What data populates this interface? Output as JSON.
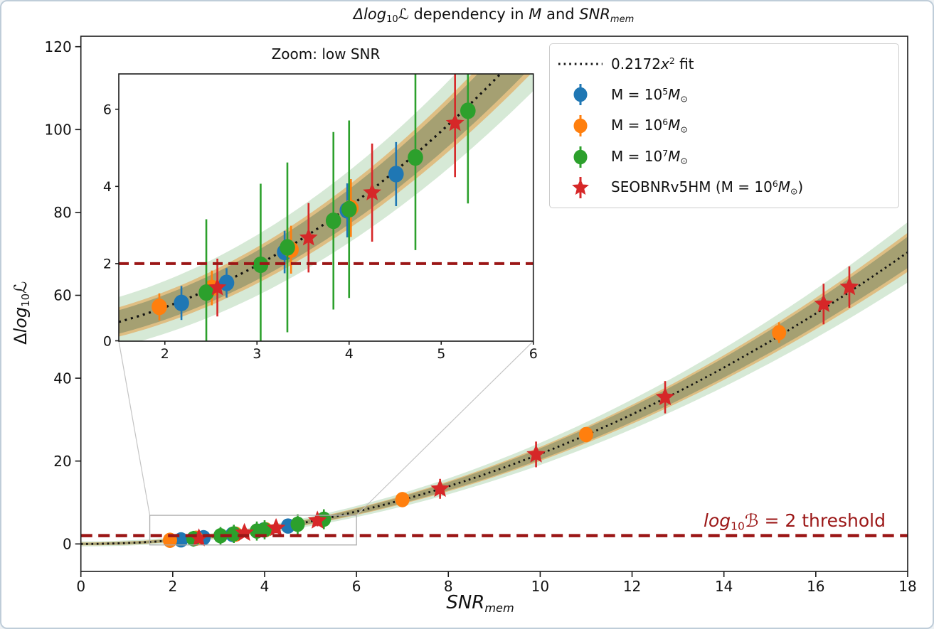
{
  "chart_data": {
    "type": "scatter",
    "title": "Δlog10ℒ dependency in M and SNRmem",
    "title_segments": [
      {
        "t": "Δ",
        "s": "it"
      },
      {
        "t": "log",
        "s": "it"
      },
      {
        "t": "10",
        "s": "sub"
      },
      {
        "t": "ℒ",
        "s": "scr"
      },
      {
        "t": " dependency in ",
        "s": ""
      },
      {
        "t": "M",
        "s": "it"
      },
      {
        "t": " and ",
        "s": ""
      },
      {
        "t": "SNR",
        "s": "it"
      },
      {
        "t": "mem",
        "s": "sub it"
      }
    ],
    "xlabel": "SNRmem",
    "xlabel_segments": [
      {
        "t": "SNR",
        "s": "it"
      },
      {
        "t": "mem",
        "s": "sub it"
      }
    ],
    "ylabel": "Δlog10ℒ",
    "ylabel_segments": [
      {
        "t": "Δ",
        "s": ""
      },
      {
        "t": "log",
        "s": "it"
      },
      {
        "t": "10",
        "s": "sub"
      },
      {
        "t": "ℒ",
        "s": "scr"
      }
    ],
    "main_axes": {
      "xlim": [
        0,
        18
      ],
      "ylim": [
        -6.6,
        122.5
      ],
      "xticks": [
        0,
        2,
        4,
        6,
        8,
        10,
        12,
        14,
        16,
        18
      ],
      "yticks": [
        0,
        20,
        40,
        60,
        80,
        100,
        120
      ],
      "grid": false
    },
    "inset": {
      "title": "Zoom: low SNR",
      "xlim": [
        1.5,
        6.0
      ],
      "ylim": [
        0,
        6.9
      ],
      "xticks": [
        2,
        3,
        4,
        5,
        6
      ],
      "yticks": [
        0,
        2,
        4,
        6
      ],
      "zoom_region": {
        "x0": 1.5,
        "x1": 6.0,
        "y0": -0.25,
        "y1": 6.9
      }
    },
    "fit": {
      "type": "quadratic",
      "coef": 0.2172,
      "label": "0.2172x^2 fit",
      "label_segments": [
        {
          "t": "0.2172",
          "s": ""
        },
        {
          "t": "x",
          "s": "it"
        },
        {
          "t": "2",
          "s": "sup"
        },
        {
          "t": " fit",
          "s": ""
        }
      ],
      "color": "#111111"
    },
    "threshold": {
      "y": 2,
      "label": "log10B = 2 threshold",
      "label_segments": [
        {
          "t": "log",
          "s": "it"
        },
        {
          "t": "10",
          "s": "sub"
        },
        {
          "t": "ℬ",
          "s": "scr"
        },
        {
          "t": " = 2 threshold",
          "s": ""
        }
      ],
      "color": "#9b1616"
    },
    "bands": {
      "outer_color": "#d6e9d6",
      "tan_color": "#debe83",
      "core_color": "#a5a072",
      "outer_halfwidth": {
        "a": 0.6,
        "b": 0.095
      },
      "inner_halfwidth": {
        "a": 0.35,
        "b": 0.062
      },
      "core_fraction": 0.8
    },
    "series": [
      {
        "name": "M = 10^5 Msun",
        "label_segments": [
          {
            "t": "M = 10",
            "s": ""
          },
          {
            "t": "5",
            "s": "sup"
          },
          {
            "t": "M",
            "s": "it"
          },
          {
            "t": "⊙",
            "s": "sub"
          }
        ],
        "color": "#1f77b4",
        "marker": "circle",
        "points": [
          [
            2.18,
            0.98,
            0.44
          ],
          [
            2.67,
            1.5,
            0.38
          ],
          [
            3.3,
            2.3,
            0.55
          ],
          [
            3.98,
            3.38,
            0.7
          ],
          [
            4.51,
            4.32,
            0.83
          ]
        ]
      },
      {
        "name": "M = 10^6 Msun",
        "label_segments": [
          {
            "t": "M = 10",
            "s": ""
          },
          {
            "t": "6",
            "s": "sup"
          },
          {
            "t": "M",
            "s": "it"
          },
          {
            "t": "⊙",
            "s": "sub"
          }
        ],
        "color": "#ff7f0e",
        "marker": "circle",
        "points": [
          [
            1.94,
            0.88,
            0.35
          ],
          [
            2.51,
            1.37,
            0.45
          ],
          [
            3.37,
            2.36,
            0.62
          ],
          [
            4.02,
            3.44,
            0.75
          ],
          [
            7.0,
            10.7,
            1.0
          ],
          [
            11.0,
            26.4,
            1.3
          ],
          [
            15.2,
            51.0,
            2.5
          ]
        ]
      },
      {
        "name": "M = 10^7 Msun",
        "label_segments": [
          {
            "t": "M = 10",
            "s": ""
          },
          {
            "t": "7",
            "s": "sup"
          },
          {
            "t": "M",
            "s": "it"
          },
          {
            "t": "⊙",
            "s": "sub"
          }
        ],
        "color": "#2ca02c",
        "marker": "circle",
        "points": [
          [
            2.45,
            1.25,
            1.9
          ],
          [
            3.04,
            1.97,
            2.1
          ],
          [
            3.33,
            2.42,
            2.2
          ],
          [
            3.83,
            3.11,
            2.3
          ],
          [
            4.0,
            3.41,
            2.3
          ],
          [
            4.72,
            4.75,
            2.4
          ],
          [
            5.29,
            5.96,
            2.4
          ]
        ]
      },
      {
        "name": "SEOBNRv5HM (M = 10^6 Msun)",
        "label_segments": [
          {
            "t": "SEOBNRv5HM (M = 10",
            "s": ""
          },
          {
            "t": "6",
            "s": "sup"
          },
          {
            "t": "M",
            "s": "it"
          },
          {
            "t": "⊙",
            "s": "sub"
          },
          {
            "t": ")",
            "s": ""
          }
        ],
        "color": "#d62728",
        "marker": "star",
        "points": [
          [
            2.57,
            1.38,
            0.75
          ],
          [
            3.56,
            2.67,
            0.9
          ],
          [
            4.25,
            3.84,
            1.27
          ],
          [
            5.15,
            5.64,
            1.4
          ],
          [
            7.82,
            13.3,
            2.4
          ],
          [
            9.91,
            21.6,
            3.1
          ],
          [
            12.72,
            35.4,
            3.9
          ],
          [
            16.17,
            57.9,
            4.9
          ],
          [
            16.73,
            62.0,
            5.0
          ]
        ]
      }
    ],
    "legend": {
      "position": "upper right",
      "entries": [
        {
          "marker": "dotted-line",
          "color": "#111111"
        },
        {
          "marker": "circle-errorbar",
          "color": "#1f77b4"
        },
        {
          "marker": "circle-errorbar",
          "color": "#ff7f0e"
        },
        {
          "marker": "circle-errorbar",
          "color": "#2ca02c"
        },
        {
          "marker": "star",
          "color": "#d62728"
        }
      ]
    }
  }
}
